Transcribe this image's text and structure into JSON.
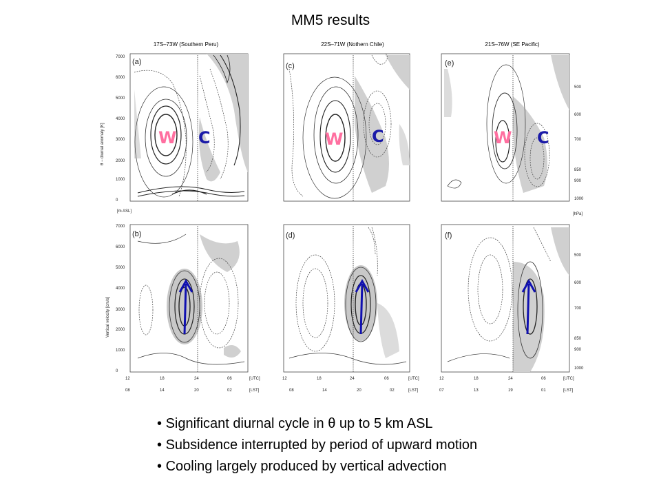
{
  "title": "MM5 results",
  "columns": [
    {
      "title": "17S–73W (Southern Peru)",
      "top_label": "(a)",
      "bottom_label": "(b)"
    },
    {
      "title": "22S–71W (Nothern Chile)",
      "top_label": "(c)",
      "bottom_label": "(d)"
    },
    {
      "title": "21S–76W (SE Pacific)",
      "top_label": "(e)",
      "bottom_label": "(f)"
    }
  ],
  "left_axis": {
    "top_ylabel": "θ − diurnal anomaly [K]",
    "bottom_ylabel": "Vertical velocity [cm/s]",
    "units_label": "[m ASL]",
    "ticks": [
      "0",
      "1000",
      "2000",
      "3000",
      "4000",
      "5000",
      "6000",
      "7000"
    ]
  },
  "right_axis": {
    "units_label": "[hPa]",
    "ticks": [
      "500",
      "600",
      "700",
      "850",
      "900",
      "1000"
    ]
  },
  "time_axis": {
    "utc_ab": [
      "12",
      "18",
      "24",
      "06"
    ],
    "lst_ab": [
      "08",
      "14",
      "20",
      "02"
    ],
    "utc_cd": [
      "12",
      "18",
      "24",
      "06"
    ],
    "lst_cd": [
      "08",
      "14",
      "20",
      "02"
    ],
    "utc_ef": [
      "12",
      "18",
      "24",
      "06"
    ],
    "lst_ef": [
      "07",
      "13",
      "19",
      "01"
    ],
    "utc_label": "[UTC]",
    "lst_label": "[LST]"
  },
  "markers": {
    "warm": "W",
    "cold": "C",
    "warm_color": "#ff6fa0",
    "cold_color": "#1a1aa8",
    "arrow_color": "#1010b0"
  },
  "bullets": [
    "Significant diurnal cycle in θ up to 5 km ASL",
    "Subsidence interrupted by period of upward motion",
    "Cooling largely produced by vertical advection"
  ]
}
